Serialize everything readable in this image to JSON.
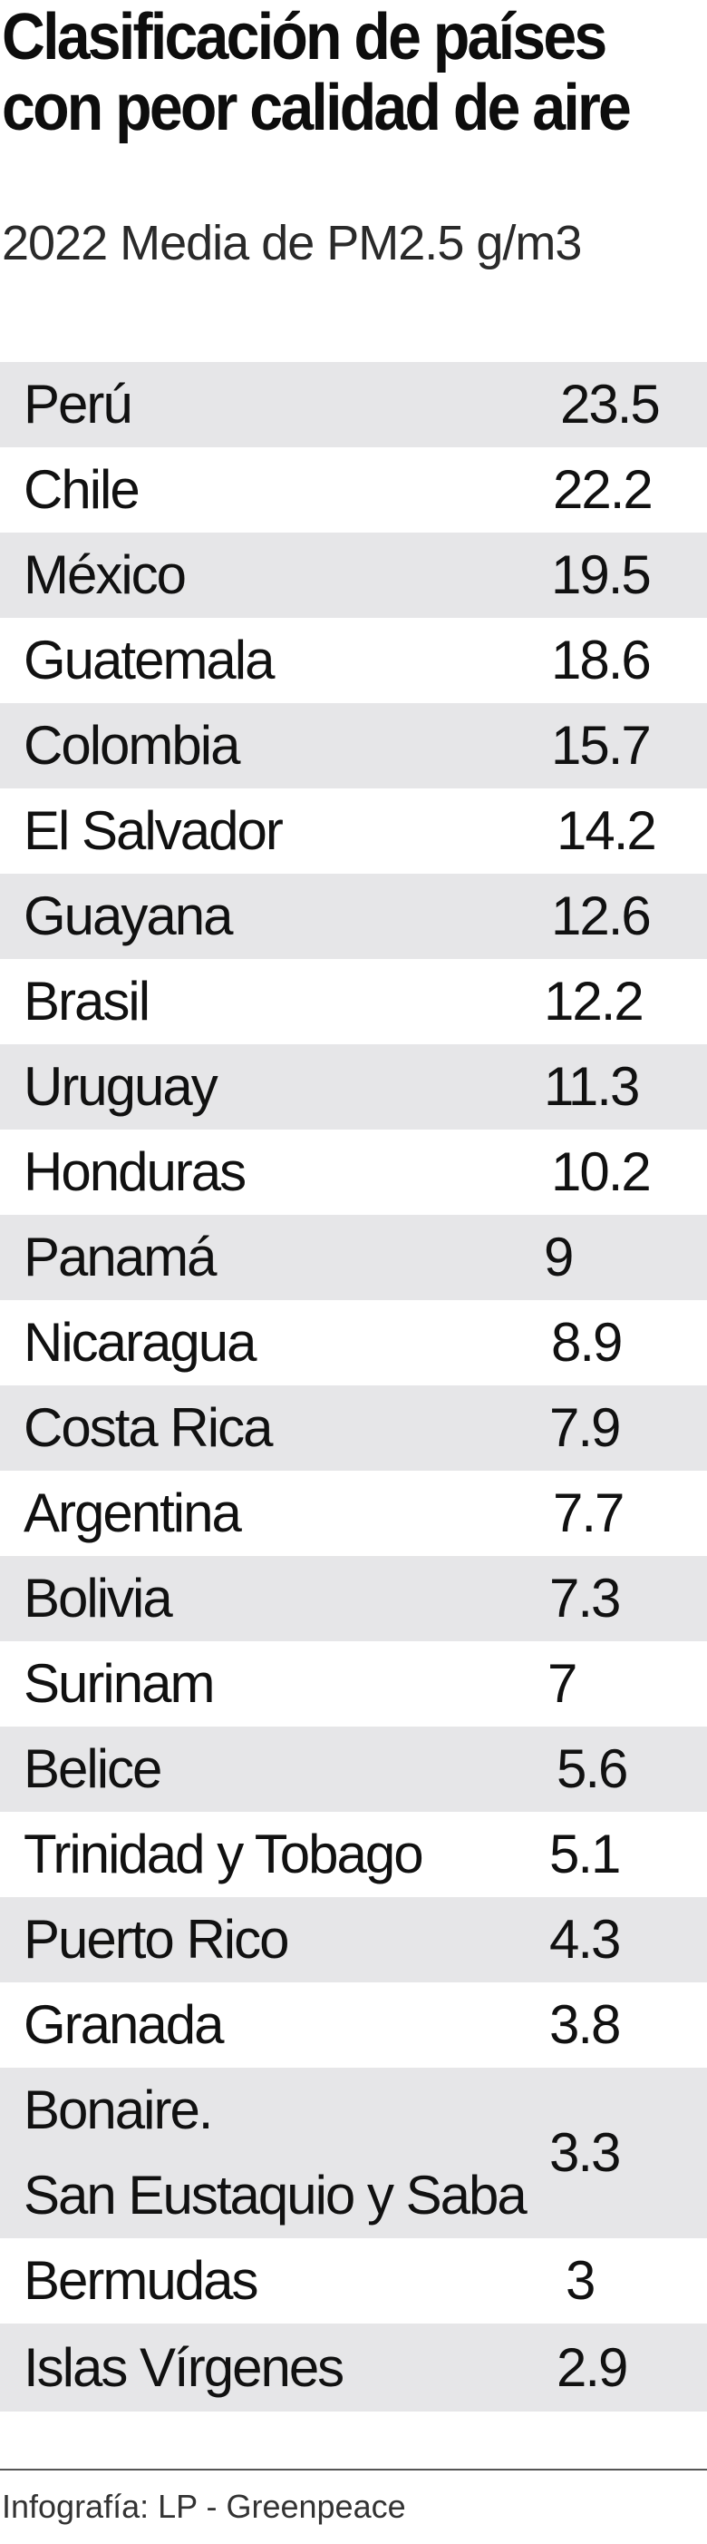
{
  "chart_data": {
    "type": "table",
    "title": "Clasificación de países con peor calidad de aire",
    "subtitle": "2022 Media de PM2.5 g/m3",
    "rows": [
      {
        "country": "Perú",
        "value": "23.5",
        "offset": 18
      },
      {
        "country": "Chile",
        "value": "22.2",
        "offset": 10
      },
      {
        "country": "México",
        "value": "19.5",
        "offset": 8
      },
      {
        "country": "Guatemala",
        "value": "18.6",
        "offset": 8
      },
      {
        "country": "Colombia",
        "value": "15.7",
        "offset": 8
      },
      {
        "country": "El Salvador",
        "value": "14.2",
        "offset": 14
      },
      {
        "country": "Guayana",
        "value": "12.6",
        "offset": 8
      },
      {
        "country": "Brasil",
        "value": "12.2",
        "offset": 0
      },
      {
        "country": "Uruguay",
        "value": "11.3",
        "offset": 0
      },
      {
        "country": "Honduras",
        "value": "10.2",
        "offset": 8
      },
      {
        "country": "Panamá",
        "value": "9",
        "offset": 0
      },
      {
        "country": "Nicaragua",
        "value": "8.9",
        "offset": 8
      },
      {
        "country": "Costa Rica",
        "value": "7.9",
        "offset": 6
      },
      {
        "country": "Argentina",
        "value": "7.7",
        "offset": 10
      },
      {
        "country": "Bolivia",
        "value": "7.3",
        "offset": 6
      },
      {
        "country": "Surinam",
        "value": "7",
        "offset": 4
      },
      {
        "country": "Belice",
        "value": "5.6",
        "offset": 14
      },
      {
        "country": "Trinidad y Tobago",
        "value": "5.1",
        "offset": 6
      },
      {
        "country": "Puerto Rico",
        "value": "4.3",
        "offset": 6
      },
      {
        "country": "Granada",
        "value": "3.8",
        "offset": 6
      },
      {
        "country": "Bonaire.\nSan Eustaquio y Saba",
        "value": "3.3",
        "offset": 6,
        "tall": true
      },
      {
        "country": "Bermudas",
        "value": "3",
        "offset": 24
      },
      {
        "country": "Islas Vírgenes",
        "value": "2.9",
        "offset": 14
      }
    ]
  },
  "source": "Infografía: LP - Greenpeace"
}
